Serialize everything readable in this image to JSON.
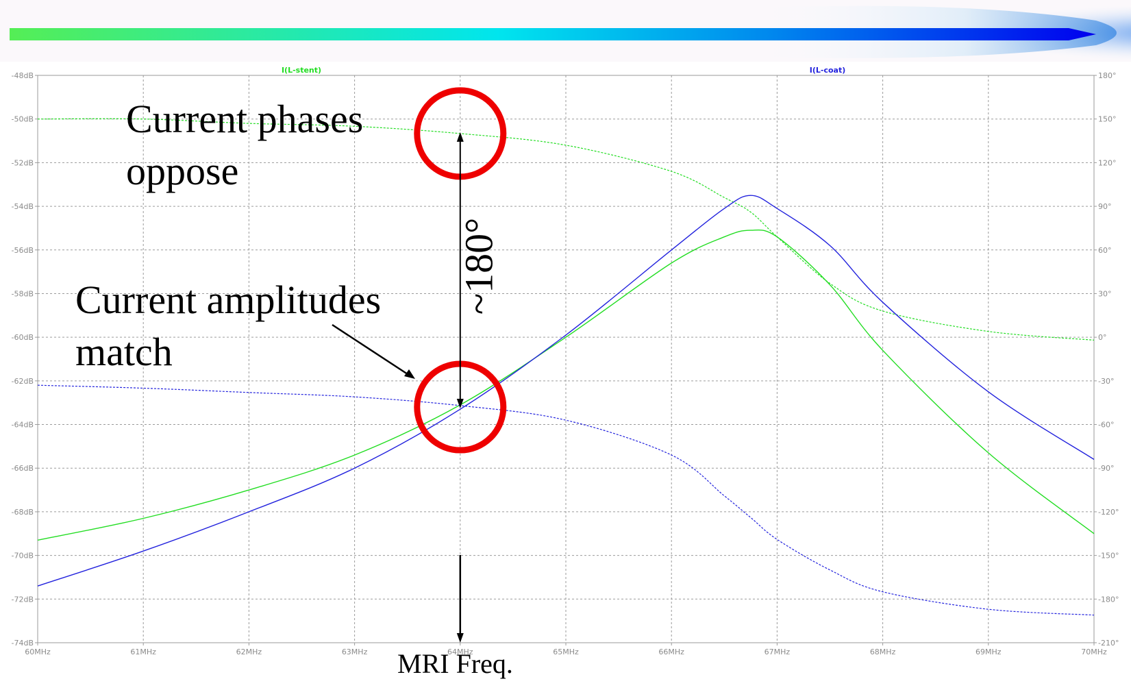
{
  "colors": {
    "stent": "#22dd22",
    "coat": "#2222dd",
    "grid": "#9a9a9a",
    "axis_text": "#8a8a8a",
    "marker": "#ee0000",
    "banner_start": "#55ee55",
    "banner_mid": "#00e5ee",
    "banner_end": "#0000ee"
  },
  "annotations": {
    "phases": "Current phases\noppose",
    "amplitudes": "Current amplitudes\nmatch",
    "angle": "~180°",
    "mri": "MRI Freq."
  },
  "chart_data": {
    "type": "line",
    "x_unit": "MHz",
    "x_ticks": [
      "60MHz",
      "61MHz",
      "62MHz",
      "63MHz",
      "64MHz",
      "65MHz",
      "66MHz",
      "67MHz",
      "68MHz",
      "69MHz",
      "70MHz"
    ],
    "xlim": [
      60,
      70
    ],
    "ylim_left": [
      -74,
      -48
    ],
    "left_ticks": [
      "-48dB",
      "-50dB",
      "-52dB",
      "-54dB",
      "-56dB",
      "-58dB",
      "-60dB",
      "-62dB",
      "-64dB",
      "-66dB",
      "-68dB",
      "-70dB",
      "-72dB",
      "-74dB"
    ],
    "ylim_right": [
      -210,
      180
    ],
    "right_ticks": [
      "180°",
      "150°",
      "120°",
      "90°",
      "60°",
      "30°",
      "0°",
      "-30°",
      "-60°",
      "-90°",
      "-120°",
      "-150°",
      "-180°",
      "-210°"
    ],
    "grid": true,
    "series": [
      {
        "name": "I(L-stent)",
        "color": "#22dd22",
        "x": [
          60,
          61,
          62,
          63,
          64,
          65,
          66,
          66.5,
          66.75,
          67,
          67.5,
          68,
          69,
          70
        ],
        "magnitude_db": [
          -69.3,
          -68.3,
          -67.0,
          -65.4,
          -63.1,
          -60.0,
          -56.6,
          -55.4,
          -55.1,
          -55.4,
          -57.6,
          -60.6,
          -65.3,
          -69.0
        ],
        "phase_deg": [
          150,
          150,
          147,
          145,
          140,
          132,
          114,
          96,
          86,
          69,
          37,
          18,
          4,
          -2
        ]
      },
      {
        "name": "I(L-coat)",
        "color": "#2222dd",
        "x": [
          60,
          61,
          62,
          63,
          64,
          65,
          66,
          66.5,
          66.75,
          67,
          67.5,
          68,
          69,
          70
        ],
        "magnitude_db": [
          -71.4,
          -69.8,
          -68.0,
          -66.0,
          -63.3,
          -59.9,
          -56.0,
          -54.1,
          -53.5,
          -54.1,
          -55.8,
          -58.4,
          -62.5,
          -65.6
        ],
        "phase_deg": [
          -33,
          -35,
          -38,
          -41,
          -47,
          -57,
          -81,
          -109,
          -124,
          -139,
          -160,
          -175,
          -187,
          -191
        ]
      }
    ]
  }
}
